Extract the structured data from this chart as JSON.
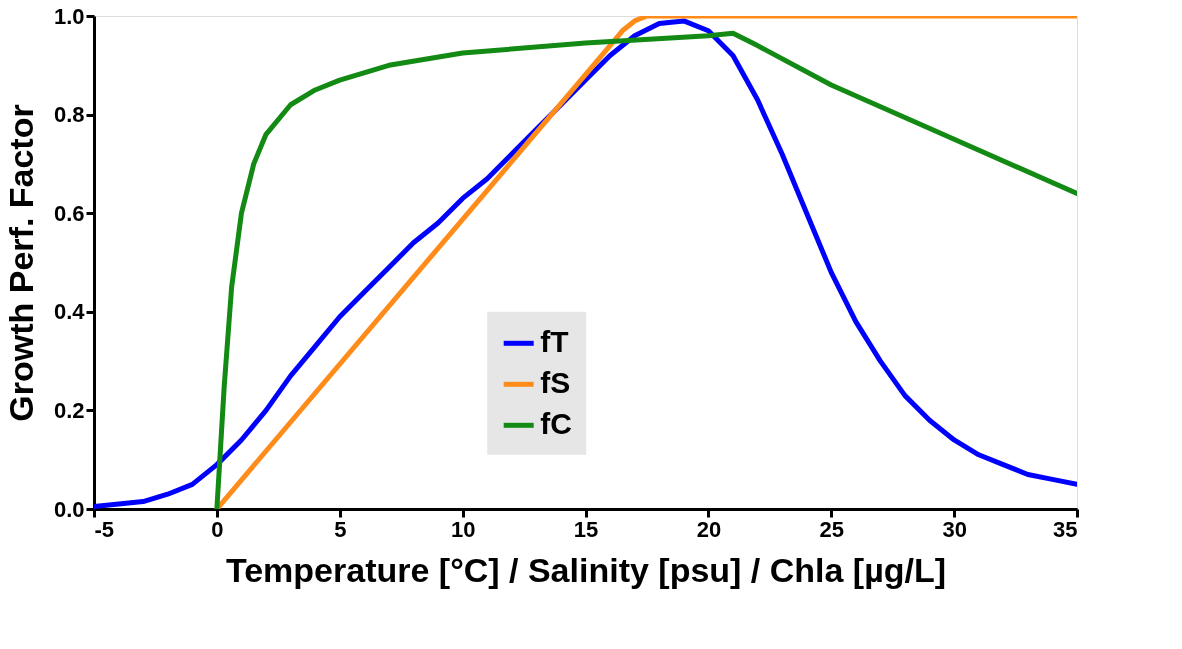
{
  "chart_data": {
    "type": "line",
    "xlabel": "Temperature [°C] / Salinity [psu] / Chla [µg/L]",
    "ylabel": "Growth Perf. Factor",
    "xlim": [
      -5,
      35
    ],
    "xticks": [
      -5,
      0,
      5,
      10,
      15,
      20,
      25,
      30,
      35
    ],
    "ylim": [
      0,
      1
    ],
    "yticks": [
      {
        "value": 0,
        "label": "0.0"
      },
      0.2,
      0.4,
      0.6,
      0.8,
      {
        "value": 1,
        "label": "1.0"
      }
    ],
    "grid": false,
    "legend": "bottom",
    "marker": "none",
    "line_style": "solid",
    "series": [
      {
        "name": "fT",
        "color": "#0000ff",
        "x": [
          -5,
          -3,
          -2,
          -1,
          0,
          1,
          2,
          3,
          4,
          5,
          6,
          7,
          8,
          9,
          10,
          11,
          12,
          13,
          14,
          15,
          16,
          17,
          18,
          19,
          20,
          21,
          22,
          23,
          24,
          25,
          26,
          27,
          28,
          29,
          30,
          31,
          32,
          33,
          34,
          35
        ],
        "values": [
          0.005,
          0.015,
          0.03,
          0.05,
          0.09,
          0.14,
          0.2,
          0.27,
          0.33,
          0.39,
          0.44,
          0.49,
          0.54,
          0.58,
          0.63,
          0.67,
          0.72,
          0.77,
          0.82,
          0.87,
          0.92,
          0.96,
          0.985,
          0.99,
          0.97,
          0.92,
          0.83,
          0.72,
          0.6,
          0.48,
          0.38,
          0.3,
          0.23,
          0.18,
          0.14,
          0.11,
          0.09,
          0.07,
          0.06,
          0.05
        ]
      },
      {
        "name": "fS",
        "color": "#ff8c1a",
        "x": [
          0,
          16,
          16.5,
          17,
          17.5,
          35
        ],
        "values": [
          0,
          0.94,
          0.97,
          0.99,
          1.0,
          1.0
        ]
      },
      {
        "name": "fC",
        "color": "#138a13",
        "x": [
          0,
          0.3,
          0.6,
          1,
          1.5,
          2,
          3,
          4,
          5,
          7,
          10,
          15,
          20,
          21,
          22,
          25,
          30,
          35
        ],
        "values": [
          0,
          0.25,
          0.45,
          0.6,
          0.7,
          0.76,
          0.82,
          0.85,
          0.87,
          0.9,
          0.925,
          0.945,
          0.96,
          0.965,
          0.94,
          0.86,
          0.75,
          0.64
        ]
      }
    ]
  }
}
